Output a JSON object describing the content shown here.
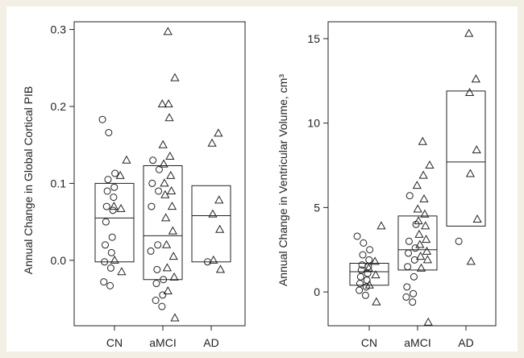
{
  "colors": {
    "background": "#f4efe4",
    "panel": "#ffffff",
    "ink": "#222222"
  },
  "legend": {
    "markers": [
      {
        "shape": "circle"
      },
      {
        "shape": "triangle"
      }
    ]
  },
  "chart_data": [
    {
      "type": "scatter",
      "title": "",
      "xlabel": "",
      "ylabel": "Annual Change in Global Cortical PIB",
      "categories": [
        "CN",
        "aMCI",
        "AD"
      ],
      "ylim": [
        -0.085,
        0.31
      ],
      "yticks": [
        0.0,
        0.1,
        0.2,
        0.3
      ],
      "ytick_labels": [
        "0.0",
        "0.1",
        "0.2",
        "0.3"
      ],
      "grid": false,
      "boxes": [
        {
          "category": "CN",
          "q1": -0.002,
          "median": 0.055,
          "q3": 0.1
        },
        {
          "category": "aMCI",
          "q1": -0.025,
          "median": 0.032,
          "q3": 0.123
        },
        {
          "category": "AD",
          "q1": -0.002,
          "median": 0.058,
          "q3": 0.097
        }
      ],
      "series": [
        {
          "marker": "circle",
          "points": [
            {
              "x": 0,
              "y": 0.183
            },
            {
              "x": 0,
              "y": 0.166
            },
            {
              "x": 0,
              "y": 0.113
            },
            {
              "x": 0,
              "y": 0.105
            },
            {
              "x": 0,
              "y": 0.095
            },
            {
              "x": 0,
              "y": 0.09
            },
            {
              "x": 0,
              "y": 0.082
            },
            {
              "x": 0,
              "y": 0.07
            },
            {
              "x": 0,
              "y": 0.065
            },
            {
              "x": 0,
              "y": 0.05
            },
            {
              "x": 0,
              "y": 0.03
            },
            {
              "x": 0,
              "y": 0.02
            },
            {
              "x": 0,
              "y": 0.01
            },
            {
              "x": 0,
              "y": -0.002
            },
            {
              "x": 0,
              "y": -0.01
            },
            {
              "x": 0,
              "y": -0.028
            },
            {
              "x": 0,
              "y": -0.033
            },
            {
              "x": 1,
              "y": 0.13
            },
            {
              "x": 1,
              "y": 0.118
            },
            {
              "x": 1,
              "y": 0.1
            },
            {
              "x": 1,
              "y": 0.09
            },
            {
              "x": 1,
              "y": 0.07
            },
            {
              "x": 1,
              "y": 0.02
            },
            {
              "x": 1,
              "y": 0.012
            },
            {
              "x": 1,
              "y": -0.012
            },
            {
              "x": 1,
              "y": -0.025
            },
            {
              "x": 1,
              "y": -0.03
            },
            {
              "x": 1,
              "y": -0.045
            },
            {
              "x": 1,
              "y": -0.052
            },
            {
              "x": 1,
              "y": -0.06
            },
            {
              "x": 2,
              "y": -0.002
            }
          ]
        },
        {
          "marker": "triangle",
          "points": [
            {
              "x": 0,
              "y": 0.13
            },
            {
              "x": 0,
              "y": 0.11
            },
            {
              "x": 0,
              "y": 0.07
            },
            {
              "x": 0,
              "y": 0.067
            },
            {
              "x": 0,
              "y": 0.0
            },
            {
              "x": 0,
              "y": -0.015
            },
            {
              "x": 1,
              "y": 0.297
            },
            {
              "x": 1,
              "y": 0.237
            },
            {
              "x": 1,
              "y": 0.203
            },
            {
              "x": 1,
              "y": 0.203
            },
            {
              "x": 1,
              "y": 0.185
            },
            {
              "x": 1,
              "y": 0.15
            },
            {
              "x": 1,
              "y": 0.135
            },
            {
              "x": 1,
              "y": 0.125
            },
            {
              "x": 1,
              "y": 0.11
            },
            {
              "x": 1,
              "y": 0.1
            },
            {
              "x": 1,
              "y": 0.09
            },
            {
              "x": 1,
              "y": 0.085
            },
            {
              "x": 1,
              "y": 0.07
            },
            {
              "x": 1,
              "y": 0.055
            },
            {
              "x": 1,
              "y": 0.038
            },
            {
              "x": 1,
              "y": 0.02
            },
            {
              "x": 1,
              "y": 0.005
            },
            {
              "x": 1,
              "y": -0.01
            },
            {
              "x": 1,
              "y": -0.022
            },
            {
              "x": 1,
              "y": -0.04
            },
            {
              "x": 1,
              "y": -0.075
            },
            {
              "x": 2,
              "y": 0.165
            },
            {
              "x": 2,
              "y": 0.152
            },
            {
              "x": 2,
              "y": 0.078
            },
            {
              "x": 2,
              "y": 0.06
            },
            {
              "x": 2,
              "y": 0.04
            },
            {
              "x": 2,
              "y": 0.0
            },
            {
              "x": 2,
              "y": -0.012
            }
          ]
        }
      ]
    },
    {
      "type": "scatter",
      "title": "",
      "xlabel": "",
      "ylabel": "Annual Change in Ventricular Volume, cm³",
      "categories": [
        "CN",
        "aMCI",
        "AD"
      ],
      "ylim": [
        -2.0,
        16.0
      ],
      "yticks": [
        0,
        5,
        10,
        15
      ],
      "ytick_labels": [
        "0",
        "5",
        "10",
        "15"
      ],
      "grid": false,
      "boxes": [
        {
          "category": "CN",
          "q1": 0.4,
          "median": 1.2,
          "q3": 1.7
        },
        {
          "category": "aMCI",
          "q1": 1.3,
          "median": 2.5,
          "q3": 4.5
        },
        {
          "category": "AD",
          "q1": 3.9,
          "median": 7.7,
          "q3": 11.9
        }
      ],
      "series": [
        {
          "marker": "circle",
          "points": [
            {
              "x": 0,
              "y": 3.3
            },
            {
              "x": 0,
              "y": 2.9
            },
            {
              "x": 0,
              "y": 2.5
            },
            {
              "x": 0,
              "y": 2.2
            },
            {
              "x": 0,
              "y": 1.9
            },
            {
              "x": 0,
              "y": 1.6
            },
            {
              "x": 0,
              "y": 1.5
            },
            {
              "x": 0,
              "y": 1.3
            },
            {
              "x": 0,
              "y": 1.1
            },
            {
              "x": 0,
              "y": 0.9
            },
            {
              "x": 0,
              "y": 0.7
            },
            {
              "x": 0,
              "y": 0.5
            },
            {
              "x": 0,
              "y": 0.3
            },
            {
              "x": 0,
              "y": 0.1
            },
            {
              "x": 0,
              "y": -0.2
            },
            {
              "x": 1,
              "y": 5.7
            },
            {
              "x": 1,
              "y": 4.0
            },
            {
              "x": 1,
              "y": 3.0
            },
            {
              "x": 1,
              "y": 2.6
            },
            {
              "x": 1,
              "y": 2.3
            },
            {
              "x": 1,
              "y": 1.9
            },
            {
              "x": 1,
              "y": 1.5
            },
            {
              "x": 1,
              "y": 0.9
            },
            {
              "x": 1,
              "y": 0.3
            },
            {
              "x": 1,
              "y": -0.1
            },
            {
              "x": 1,
              "y": -0.3
            },
            {
              "x": 1,
              "y": -0.6
            },
            {
              "x": 2,
              "y": 3.0
            }
          ]
        },
        {
          "marker": "triangle",
          "points": [
            {
              "x": 0,
              "y": 3.9
            },
            {
              "x": 0,
              "y": 1.8
            },
            {
              "x": 0,
              "y": 1.4
            },
            {
              "x": 0,
              "y": 1.0
            },
            {
              "x": 0,
              "y": 0.4
            },
            {
              "x": 0,
              "y": -0.6
            },
            {
              "x": 1,
              "y": 8.9
            },
            {
              "x": 1,
              "y": 7.5
            },
            {
              "x": 1,
              "y": 6.9
            },
            {
              "x": 1,
              "y": 6.3
            },
            {
              "x": 1,
              "y": 5.5
            },
            {
              "x": 1,
              "y": 4.9
            },
            {
              "x": 1,
              "y": 4.6
            },
            {
              "x": 1,
              "y": 4.2
            },
            {
              "x": 1,
              "y": 3.9
            },
            {
              "x": 1,
              "y": 3.4
            },
            {
              "x": 1,
              "y": 3.1
            },
            {
              "x": 1,
              "y": 2.8
            },
            {
              "x": 1,
              "y": 2.4
            },
            {
              "x": 1,
              "y": 2.1
            },
            {
              "x": 1,
              "y": 1.9
            },
            {
              "x": 1,
              "y": 1.4
            },
            {
              "x": 1,
              "y": -1.8
            },
            {
              "x": 2,
              "y": 15.3
            },
            {
              "x": 2,
              "y": 12.6
            },
            {
              "x": 2,
              "y": 11.8
            },
            {
              "x": 2,
              "y": 8.4
            },
            {
              "x": 2,
              "y": 7.0
            },
            {
              "x": 2,
              "y": 4.3
            },
            {
              "x": 2,
              "y": 1.8
            }
          ]
        }
      ]
    }
  ]
}
